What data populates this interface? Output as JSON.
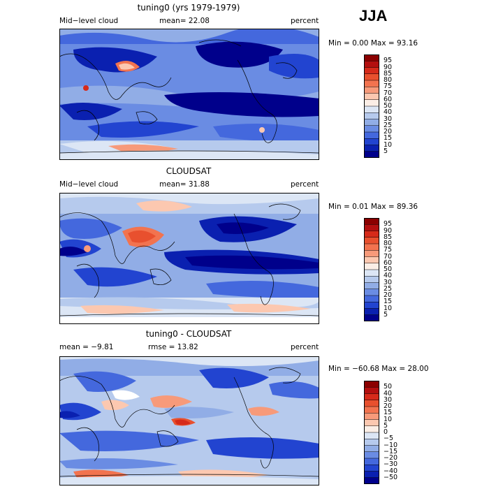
{
  "season": "JJA",
  "panels": [
    {
      "title": "tuning0 (yrs 1979-1979)",
      "left_label": "Mid−level cloud",
      "mid_label": "mean=  22.08",
      "right_label": "percent",
      "stats": "Min =    0.00 Max =  93.16",
      "colorbar_ticks": [
        "95",
        "90",
        "85",
        "80",
        "75",
        "70",
        "60",
        "50",
        "40",
        "30",
        "25",
        "20",
        "15",
        "10",
        "5"
      ]
    },
    {
      "title": "CLOUDSAT",
      "left_label": "Mid−level cloud",
      "mid_label": "mean=  31.88",
      "right_label": "percent",
      "stats": "Min =    0.01 Max =  89.36",
      "colorbar_ticks": [
        "95",
        "90",
        "85",
        "80",
        "75",
        "70",
        "60",
        "50",
        "40",
        "30",
        "25",
        "20",
        "15",
        "10",
        "5"
      ]
    },
    {
      "title": "tuning0 - CLOUDSAT",
      "left_label": "mean =  −9.81",
      "mid_label": "rmse =  13.82",
      "right_label": "percent",
      "stats": "Min = −60.68 Max =  28.00",
      "colorbar_ticks": [
        "50",
        "40",
        "30",
        "20",
        "15",
        "10",
        "5",
        "0",
        "−5",
        "−10",
        "−15",
        "−20",
        "−30",
        "−40",
        "−50"
      ]
    }
  ],
  "colorbar_colors": [
    "#8b0000",
    "#b30f0f",
    "#d62a1a",
    "#e8502e",
    "#f2734f",
    "#f79a7a",
    "#fcc8b0",
    "#fbeee6",
    "#dce6f5",
    "#b6caed",
    "#91ade6",
    "#6a8ce3",
    "#4468dd",
    "#2244d0",
    "#0a20b0",
    "#00008b"
  ]
}
